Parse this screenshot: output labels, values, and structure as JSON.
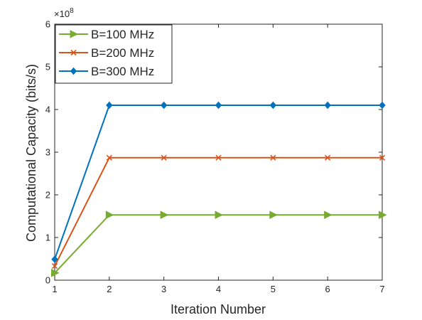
{
  "chart_data": {
    "type": "line",
    "title": "",
    "xlabel": "Iteration Number",
    "ylabel": "Computational Capacity (bits/s)",
    "y_exponent_label": "×10",
    "y_exponent_power": "8",
    "xlim": [
      1,
      7
    ],
    "ylim": [
      0,
      6
    ],
    "x_ticks": [
      1,
      2,
      3,
      4,
      5,
      6,
      7
    ],
    "y_ticks": [
      0,
      1,
      2,
      3,
      4,
      5,
      6
    ],
    "grid": false,
    "legend_position": "top-left",
    "x": [
      1,
      2,
      3,
      4,
      5,
      6,
      7
    ],
    "series": [
      {
        "name": "B=100 MHz",
        "color": "#77AC30",
        "marker": "triangle-right",
        "values": [
          0.17,
          1.53,
          1.53,
          1.53,
          1.53,
          1.53,
          1.53
        ]
      },
      {
        "name": "B=200 MHz",
        "color": "#D95319",
        "marker": "x",
        "values": [
          0.33,
          2.87,
          2.87,
          2.87,
          2.87,
          2.87,
          2.87
        ]
      },
      {
        "name": "B=300 MHz",
        "color": "#0072BD",
        "marker": "diamond",
        "values": [
          0.49,
          4.1,
          4.1,
          4.1,
          4.1,
          4.1,
          4.1
        ]
      }
    ]
  }
}
